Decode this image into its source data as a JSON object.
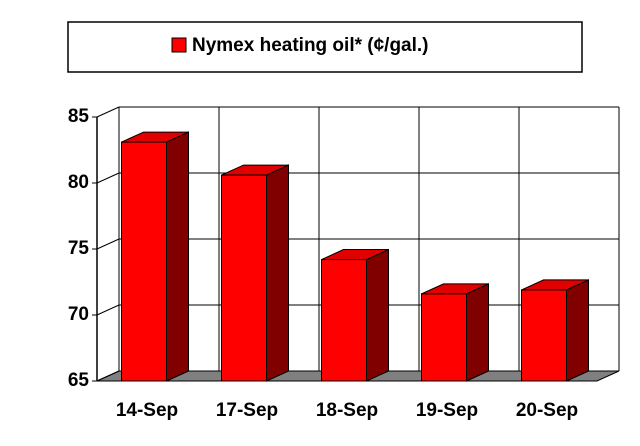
{
  "chart_data": {
    "type": "bar3d",
    "categories": [
      "14-Sep",
      "17-Sep",
      "18-Sep",
      "19-Sep",
      "20-Sep"
    ],
    "series": [
      {
        "name": "Nymex heating oil* (¢/gal.)",
        "color": "#ff0000",
        "values": [
          83.1,
          80.6,
          74.2,
          71.6,
          71.9
        ]
      }
    ],
    "ylim": [
      65,
      85
    ],
    "yticks": [
      65,
      70,
      75,
      80,
      85
    ],
    "grid": true,
    "legend": "top"
  }
}
